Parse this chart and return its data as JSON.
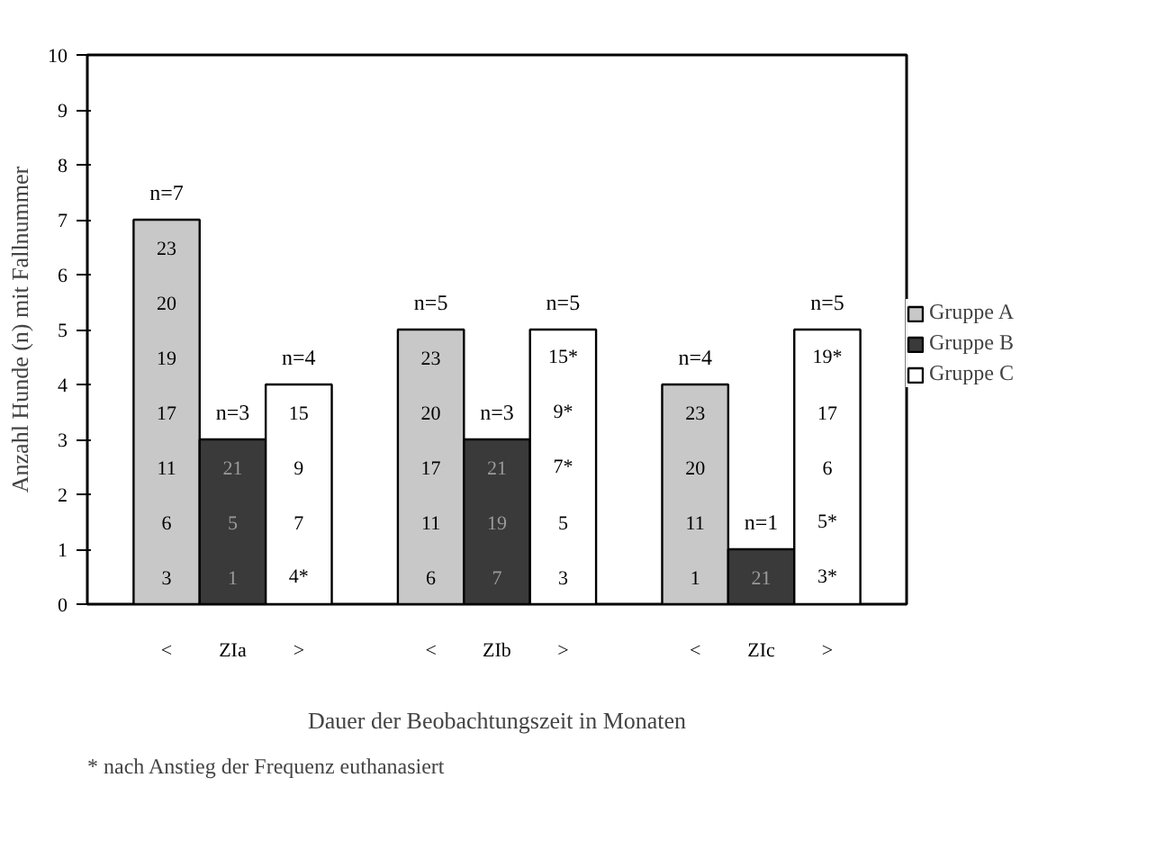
{
  "chart_data": {
    "type": "bar",
    "xlabel": "Dauer der Beobachtungszeit in Monaten",
    "ylabel": "Anzahl Hunde (n) mit Fallnummer",
    "categories": [
      "<",
      "ZIa",
      ">",
      "<",
      "ZIb",
      ">",
      "<",
      "ZIc",
      ">"
    ],
    "series": [
      {
        "name": "Gruppe A",
        "color": "#c8c8c8",
        "values": [
          7,
          null,
          null,
          5,
          null,
          null,
          4,
          null,
          null
        ],
        "value_labels": [
          "n=7",
          null,
          null,
          "n=5",
          null,
          null,
          "n=4",
          null,
          null
        ]
      },
      {
        "name": "Gruppe B",
        "color": "#3a3a3a",
        "values": [
          null,
          3,
          null,
          null,
          3,
          null,
          null,
          1,
          null
        ],
        "value_labels": [
          null,
          "n=3",
          null,
          null,
          "n=3",
          null,
          null,
          "n=1",
          null
        ]
      },
      {
        "name": "Gruppe C",
        "color": "#ffffff",
        "values": [
          null,
          null,
          4,
          null,
          null,
          5,
          null,
          null,
          5
        ],
        "value_labels": [
          null,
          null,
          "n=4",
          null,
          null,
          "n=5",
          null,
          null,
          "n=5"
        ]
      }
    ],
    "ylim": [
      0,
      10
    ],
    "yticks": [
      0,
      1,
      2,
      3,
      4,
      5,
      6,
      7,
      8,
      9,
      10
    ],
    "grid": false,
    "legend": "right",
    "annotations": [
      "23",
      "20",
      "19",
      "17",
      "11",
      "6",
      "3",
      "21",
      "5",
      "1",
      "15",
      "9",
      "7",
      "4*",
      "23",
      "20",
      "17",
      "11",
      "6",
      "21",
      "19",
      "7",
      "15*",
      "9*",
      "7*",
      "5",
      "3",
      "23",
      "20",
      "11",
      "1",
      "21",
      "19*",
      "17",
      "6",
      "5*",
      "3*",
      "* nach Anstieg der Frequenz euthanasiert"
    ]
  }
}
